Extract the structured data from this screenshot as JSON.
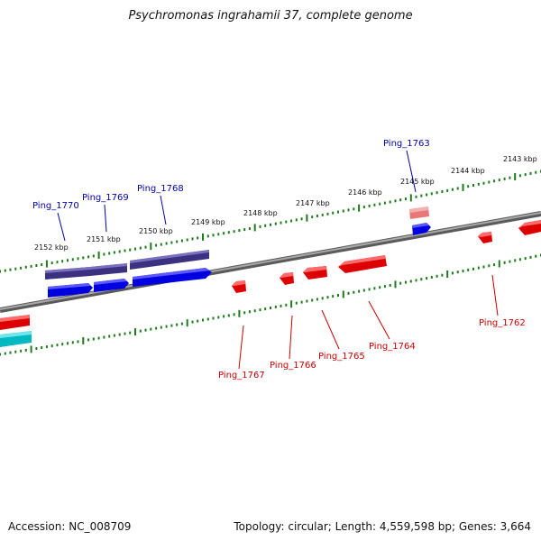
{
  "title": "Psychromonas ingrahamii 37, complete genome",
  "footer": {
    "accession": "Accession: NC_008709",
    "genome_info": "Topology: circular; Length: 4,559,598 bp; Genes: 3,664"
  },
  "colors": {
    "backbone": "#7f7f7f",
    "plus_strand_gene": "#0000ee",
    "plus_strand_selected": "#4a3f8f",
    "minus_strand_gene": "#ee0000",
    "minus_strand_alt": "#00b8c0",
    "pseudo_gene": "#e87878",
    "tick": "#1e7a1e",
    "plus_label": "#0000aa",
    "minus_label": "#cc0000"
  },
  "scale": {
    "unit": "kbp",
    "tick_labels": [
      "2152 kbp",
      "2151 kbp",
      "2150 kbp",
      "2149 kbp",
      "2148 kbp",
      "2147 kbp",
      "2146 kbp",
      "2145 kbp",
      "2144 kbp",
      "2143 kbp"
    ]
  },
  "genes_plus": [
    "Ping_1770",
    "Ping_1769",
    "Ping_1768",
    "Ping_1763"
  ],
  "genes_minus": [
    "Ping_1767",
    "Ping_1766",
    "Ping_1765",
    "Ping_1764",
    "Ping_1762"
  ]
}
